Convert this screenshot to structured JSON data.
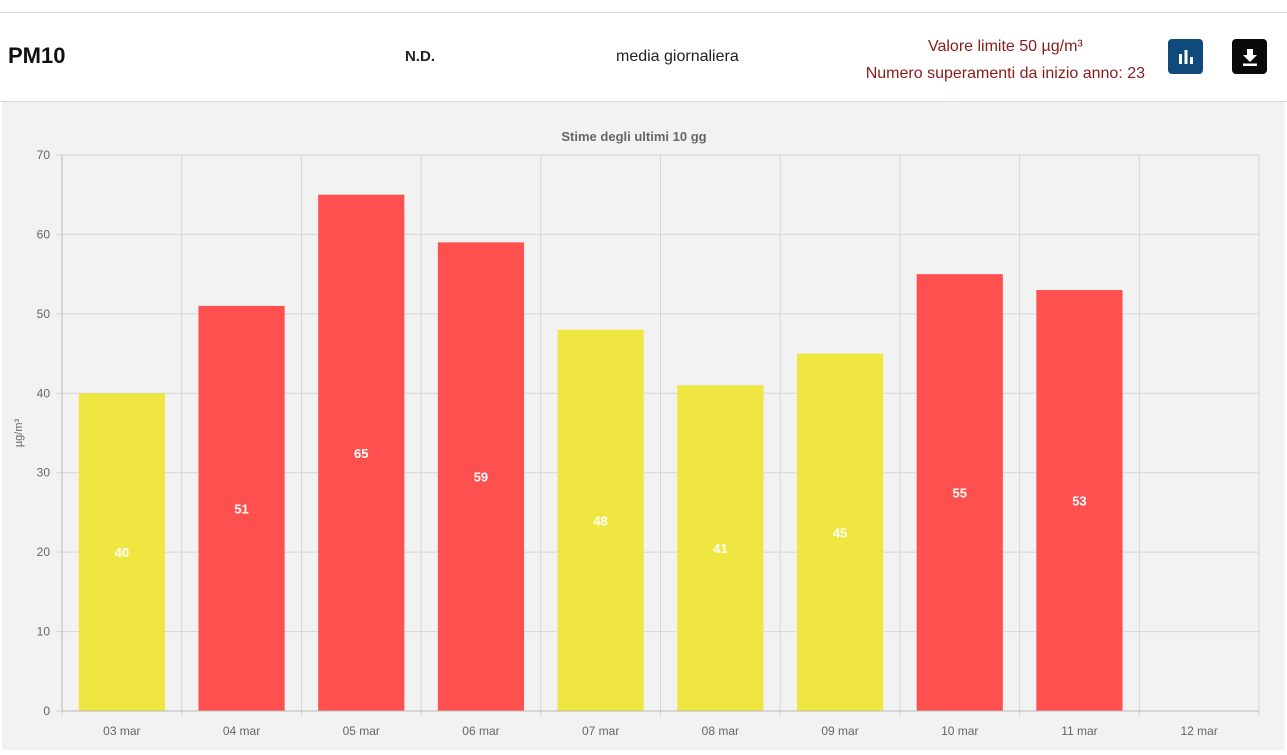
{
  "header": {
    "pollutant": "PM10",
    "station_value": "N.D.",
    "averaging": "media giornaliera",
    "limit_text": "Valore limite 50 µg/m³",
    "exceedances_text": "Numero superamenti da inizio anno: 23",
    "chart_button_icon": "bar-chart-icon",
    "download_button_icon": "download-icon"
  },
  "chart_data": {
    "type": "bar",
    "title": "Stime degli ultimi 10 gg",
    "ylabel": "µg/m³",
    "xlabel": "",
    "ylim": [
      0,
      70
    ],
    "yticks": [
      0,
      10,
      20,
      30,
      40,
      50,
      60,
      70
    ],
    "categories": [
      "03 mar",
      "04 mar",
      "05 mar",
      "06 mar",
      "07 mar",
      "08 mar",
      "09 mar",
      "10 mar",
      "11 mar",
      "12 mar"
    ],
    "values": [
      40,
      51,
      65,
      59,
      48,
      41,
      45,
      55,
      53,
      null
    ],
    "threshold": 50,
    "colors": {
      "below_limit": "#f0e641",
      "above_limit": "#ff5050",
      "label": "#ffffff"
    },
    "grid": true,
    "legend": "none"
  }
}
